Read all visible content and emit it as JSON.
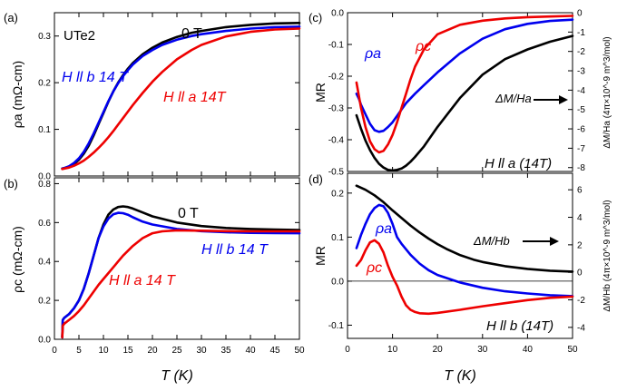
{
  "shared": {
    "x_axis_label": "T (K)",
    "x_ticks": [
      "0",
      "5",
      "10",
      "15",
      "20",
      "25",
      "30",
      "35",
      "40",
      "45",
      "50"
    ],
    "x_ticks_right": [
      "0",
      "10",
      "20",
      "30",
      "40",
      "50"
    ]
  },
  "chart_data": [
    {
      "id": "a",
      "type": "line",
      "panel_label": "(a)",
      "title": "UTe2",
      "ylabel": "ρa (mΩ-cm)",
      "xlabel": "T (K)",
      "xlim": [
        0,
        50
      ],
      "ylim": [
        0,
        0.35
      ],
      "yticks": [
        "0.0",
        "0.1",
        "0.2",
        "0.3"
      ],
      "series": [
        {
          "name": "0 T",
          "color": "#000000",
          "x": [
            1.6,
            2,
            3,
            4,
            5,
            6,
            7,
            8,
            9,
            10,
            11,
            12,
            13,
            14,
            15,
            16,
            18,
            20,
            22,
            25,
            28,
            30,
            35,
            40,
            45,
            50
          ],
          "y": [
            0.016,
            0.017,
            0.02,
            0.026,
            0.035,
            0.048,
            0.065,
            0.087,
            0.111,
            0.135,
            0.159,
            0.181,
            0.2,
            0.216,
            0.23,
            0.242,
            0.261,
            0.275,
            0.286,
            0.298,
            0.307,
            0.311,
            0.319,
            0.324,
            0.327,
            0.328
          ]
        },
        {
          "name": "H ll b 14 T",
          "color": "#0000ee",
          "x": [
            1.6,
            2,
            3,
            4,
            5,
            6,
            7,
            8,
            9,
            10,
            11,
            12,
            13,
            14,
            15,
            16,
            18,
            20,
            22,
            25,
            28,
            30,
            35,
            40,
            45,
            50
          ],
          "y": [
            0.016,
            0.017,
            0.021,
            0.028,
            0.038,
            0.052,
            0.07,
            0.091,
            0.114,
            0.137,
            0.16,
            0.181,
            0.199,
            0.214,
            0.227,
            0.239,
            0.257,
            0.27,
            0.281,
            0.292,
            0.3,
            0.304,
            0.311,
            0.316,
            0.319,
            0.32
          ]
        },
        {
          "name": "H ll a 14T",
          "color": "#ee0000",
          "x": [
            1.6,
            2,
            3,
            4,
            5,
            6,
            7,
            8,
            9,
            10,
            11,
            12,
            13,
            14,
            15,
            16,
            18,
            20,
            22,
            25,
            28,
            30,
            35,
            40,
            45,
            50
          ],
          "y": [
            0.015,
            0.016,
            0.018,
            0.022,
            0.027,
            0.033,
            0.041,
            0.05,
            0.06,
            0.071,
            0.083,
            0.096,
            0.11,
            0.124,
            0.138,
            0.152,
            0.178,
            0.202,
            0.223,
            0.25,
            0.27,
            0.281,
            0.299,
            0.309,
            0.314,
            0.316
          ]
        }
      ],
      "annotations": [
        "0 T",
        "H ll b 14 T",
        "H ll a 14T"
      ]
    },
    {
      "id": "b",
      "type": "line",
      "panel_label": "(b)",
      "ylabel": "ρc (mΩ-cm)",
      "xlabel": "T (K)",
      "xlim": [
        0,
        50
      ],
      "ylim": [
        0,
        0.83
      ],
      "yticks": [
        "0.0",
        "0.2",
        "0.4",
        "0.6",
        "0.8"
      ],
      "series": [
        {
          "name": "0 T",
          "color": "#000000",
          "x": [
            1.6,
            1.7,
            2,
            3,
            4,
            5,
            6,
            7,
            8,
            9,
            10,
            11,
            12,
            13,
            14,
            15,
            16,
            18,
            20,
            25,
            30,
            35,
            40,
            45,
            50
          ],
          "y": [
            0.01,
            0.1,
            0.11,
            0.13,
            0.16,
            0.2,
            0.26,
            0.34,
            0.43,
            0.52,
            0.59,
            0.64,
            0.667,
            0.68,
            0.683,
            0.68,
            0.672,
            0.652,
            0.632,
            0.6,
            0.582,
            0.572,
            0.567,
            0.564,
            0.562
          ]
        },
        {
          "name": "H ll b 14 T",
          "color": "#0000ee",
          "x": [
            1.6,
            1.7,
            2,
            3,
            4,
            5,
            6,
            7,
            8,
            9,
            10,
            11,
            12,
            13,
            14,
            15,
            16,
            18,
            20,
            25,
            30,
            35,
            40,
            45,
            50
          ],
          "y": [
            0.01,
            0.1,
            0.11,
            0.13,
            0.16,
            0.2,
            0.26,
            0.34,
            0.43,
            0.52,
            0.58,
            0.62,
            0.642,
            0.65,
            0.648,
            0.64,
            0.627,
            0.605,
            0.59,
            0.567,
            0.556,
            0.55,
            0.547,
            0.546,
            0.545
          ]
        },
        {
          "name": "H ll a 14 T",
          "color": "#ee0000",
          "x": [
            1.6,
            1.7,
            2,
            3,
            4,
            5,
            6,
            7,
            8,
            9,
            10,
            11,
            12,
            13,
            14,
            15,
            16,
            18,
            20,
            22,
            25,
            30,
            35,
            40,
            45,
            50
          ],
          "y": [
            0.01,
            0.07,
            0.08,
            0.1,
            0.12,
            0.145,
            0.175,
            0.21,
            0.245,
            0.28,
            0.31,
            0.34,
            0.37,
            0.4,
            0.43,
            0.455,
            0.48,
            0.52,
            0.545,
            0.555,
            0.56,
            0.558,
            0.556,
            0.555,
            0.555,
            0.555
          ]
        }
      ],
      "annotations": [
        "0 T",
        "H ll b 14 T",
        "H ll a 14 T"
      ]
    },
    {
      "id": "c",
      "type": "line",
      "panel_label": "(c)",
      "ylabel": "MR",
      "y2label": "ΔM/Ha (4π×10^-9 m^3/mol)",
      "xlabel": "T (K)",
      "xlim": [
        0,
        50
      ],
      "ylim": [
        -0.5,
        0.0
      ],
      "yticks": [
        "0.0",
        "-0.1",
        "-0.2",
        "-0.3",
        "-0.4",
        "-0.5"
      ],
      "y2lim": [
        -8.2,
        0
      ],
      "y2ticks": [
        "0",
        "-1",
        "-2",
        "-3",
        "-4",
        "-5",
        "-6",
        "-7",
        "-8"
      ],
      "series": [
        {
          "name": "ρa",
          "axis": "MR",
          "color": "#0000ee",
          "x": [
            2,
            2.5,
            3,
            4,
            5,
            6,
            7,
            8,
            9,
            10,
            11,
            12,
            13,
            15,
            17,
            20,
            25,
            30,
            35,
            40,
            45,
            50
          ],
          "y": [
            -0.255,
            -0.27,
            -0.29,
            -0.32,
            -0.35,
            -0.37,
            -0.375,
            -0.372,
            -0.36,
            -0.345,
            -0.325,
            -0.305,
            -0.285,
            -0.255,
            -0.228,
            -0.188,
            -0.128,
            -0.082,
            -0.052,
            -0.035,
            -0.026,
            -0.022
          ]
        },
        {
          "name": "ρc",
          "axis": "MR",
          "color": "#ee0000",
          "x": [
            2,
            2.5,
            3,
            4,
            5,
            6,
            7,
            8,
            9,
            10,
            11,
            12,
            13,
            14,
            15,
            17,
            20,
            25,
            30,
            35,
            40,
            45,
            50
          ],
          "y": [
            -0.22,
            -0.26,
            -0.3,
            -0.36,
            -0.405,
            -0.43,
            -0.44,
            -0.435,
            -0.415,
            -0.385,
            -0.345,
            -0.3,
            -0.255,
            -0.21,
            -0.17,
            -0.115,
            -0.068,
            -0.038,
            -0.025,
            -0.018,
            -0.014,
            -0.012,
            -0.01
          ]
        },
        {
          "name": "ΔM/Ha",
          "axis": "ΔM/Ha",
          "color": "#000000",
          "x": [
            2,
            3,
            4,
            5,
            6,
            7,
            8,
            9,
            10,
            11,
            12,
            13,
            14,
            15,
            17,
            20,
            25,
            30,
            35,
            40,
            45,
            50
          ],
          "y": [
            -5.3,
            -6.0,
            -6.6,
            -7.1,
            -7.5,
            -7.8,
            -8.0,
            -8.12,
            -8.15,
            -8.12,
            -8.05,
            -7.9,
            -7.7,
            -7.45,
            -6.9,
            -5.9,
            -4.4,
            -3.2,
            -2.4,
            -1.9,
            -1.5,
            -1.2
          ]
        }
      ],
      "annotations": [
        "ρa",
        "ρc",
        "ΔM/Ha",
        "H ll a (14T)"
      ]
    },
    {
      "id": "d",
      "type": "line",
      "panel_label": "(d)",
      "ylabel": "MR",
      "y2label": "ΔM/Hb (4π×10^-9 m^3/mol)",
      "xlabel": "T (K)",
      "xlim": [
        0,
        50
      ],
      "ylim": [
        -0.13,
        0.245
      ],
      "yticks": [
        "0.2",
        "0.1",
        "0.0",
        "-0.1"
      ],
      "y2lim": [
        -4.8,
        7.2
      ],
      "y2ticks": [
        "6",
        "4",
        "2",
        "0",
        "-2",
        "-4"
      ],
      "series": [
        {
          "name": "ρa",
          "axis": "MR",
          "color": "#0000ee",
          "x": [
            2,
            3,
            4,
            5,
            6,
            7,
            8,
            9,
            10,
            11,
            12,
            14,
            16,
            18,
            20,
            25,
            30,
            35,
            40,
            45,
            50
          ],
          "y": [
            0.075,
            0.105,
            0.13,
            0.152,
            0.166,
            0.173,
            0.17,
            0.155,
            0.13,
            0.1,
            0.085,
            0.06,
            0.04,
            0.025,
            0.014,
            -0.003,
            -0.015,
            -0.023,
            -0.028,
            -0.032,
            -0.034
          ]
        },
        {
          "name": "ρc",
          "axis": "MR",
          "color": "#ee0000",
          "x": [
            2,
            3,
            4,
            5,
            6,
            7,
            8,
            9,
            10,
            11,
            12,
            13,
            14,
            15,
            16,
            18,
            20,
            25,
            30,
            35,
            40,
            45,
            50
          ],
          "y": [
            0.035,
            0.048,
            0.07,
            0.088,
            0.093,
            0.085,
            0.065,
            0.035,
            0.01,
            -0.01,
            -0.035,
            -0.055,
            -0.065,
            -0.07,
            -0.073,
            -0.074,
            -0.072,
            -0.065,
            -0.057,
            -0.05,
            -0.043,
            -0.038,
            -0.035
          ]
        },
        {
          "name": "ΔM/Hb",
          "axis": "ΔM/Hb",
          "color": "#000000",
          "x": [
            2,
            4,
            6,
            8,
            10,
            12,
            14,
            16,
            18,
            20,
            22,
            25,
            28,
            30,
            35,
            40,
            45,
            50
          ],
          "y": [
            6.3,
            6.0,
            5.6,
            5.1,
            4.5,
            3.95,
            3.4,
            2.9,
            2.45,
            2.05,
            1.7,
            1.25,
            0.92,
            0.75,
            0.45,
            0.25,
            0.12,
            0.05
          ]
        }
      ],
      "annotations": [
        "ρa",
        "ρc",
        "ΔM/Hb",
        "H ll b (14T)"
      ]
    }
  ]
}
